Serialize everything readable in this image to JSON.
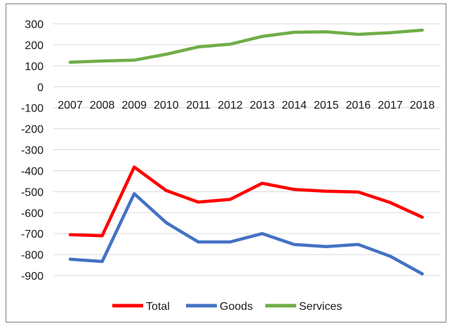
{
  "chart_data": {
    "type": "line",
    "title": "",
    "xlabel": "",
    "ylabel": "",
    "categories": [
      "2007",
      "2008",
      "2009",
      "2010",
      "2011",
      "2012",
      "2013",
      "2014",
      "2015",
      "2016",
      "2017",
      "2018"
    ],
    "ylim": [
      -900,
      300
    ],
    "yticks": [
      300,
      200,
      100,
      0,
      -100,
      -200,
      -300,
      -400,
      -500,
      -600,
      -700,
      -800,
      -900
    ],
    "grid": true,
    "legend_position": "bottom",
    "series": [
      {
        "name": "Total",
        "color": "#ff0000",
        "values": [
          -705,
          -710,
          -383,
          -495,
          -550,
          -537,
          -460,
          -490,
          -498,
          -502,
          -552,
          -622
        ]
      },
      {
        "name": "Goods",
        "color": "#4472c4",
        "values": [
          -822,
          -833,
          -510,
          -648,
          -740,
          -740,
          -700,
          -752,
          -762,
          -752,
          -808,
          -892
        ]
      },
      {
        "name": "Services",
        "color": "#70ad47",
        "values": [
          117,
          123,
          127,
          155,
          190,
          203,
          240,
          260,
          262,
          250,
          258,
          270
        ]
      }
    ]
  }
}
